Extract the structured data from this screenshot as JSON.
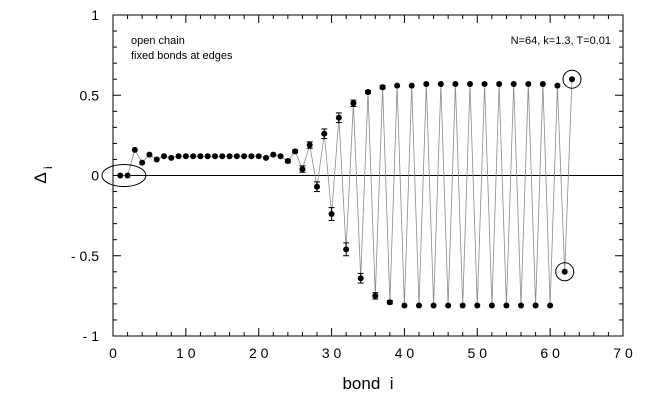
{
  "chart_data": {
    "type": "scatter",
    "xlabel": "bond  i",
    "ylabel": "Δ",
    "ylabel_sub": "i",
    "xlim": [
      0,
      70
    ],
    "ylim": [
      -1,
      1
    ],
    "xticks": [
      0,
      10,
      20,
      30,
      40,
      50,
      60,
      70
    ],
    "xtick_labels": [
      "0",
      "1 0",
      "2 0",
      "3 0",
      "4 0",
      "5 0",
      "6 0",
      "7 0"
    ],
    "yticks": [
      1,
      0.5,
      0,
      -0.5,
      -1
    ],
    "ytick_labels": [
      "1",
      "0.5",
      "0",
      "- 0.5",
      "- 1"
    ],
    "grid": false,
    "zero_line": true,
    "annotations": {
      "top_left": [
        "open chain",
        "fixed bonds at edges"
      ],
      "top_right": "N=64,  k=1.3,  T=0.01"
    },
    "series": [
      {
        "marker": "circle-filled",
        "line": "thin-gray-connecting",
        "x": [
          1,
          2,
          3,
          4,
          5,
          6,
          7,
          8,
          9,
          10,
          11,
          12,
          13,
          14,
          15,
          16,
          17,
          18,
          19,
          20,
          21,
          22,
          23,
          24,
          25,
          26,
          27,
          28,
          29,
          30,
          31,
          32,
          33,
          34,
          35,
          36,
          37,
          38,
          39,
          40,
          41,
          42,
          43,
          44,
          45,
          46,
          47,
          48,
          49,
          50,
          51,
          52,
          53,
          54,
          55,
          56,
          57,
          58,
          59,
          60,
          61,
          62,
          63
        ],
        "y": [
          0.0,
          0.0,
          0.16,
          0.08,
          0.13,
          0.1,
          0.12,
          0.11,
          0.12,
          0.12,
          0.12,
          0.12,
          0.12,
          0.12,
          0.12,
          0.12,
          0.12,
          0.12,
          0.12,
          0.12,
          0.11,
          0.13,
          0.12,
          0.09,
          0.15,
          0.04,
          0.19,
          -0.07,
          0.26,
          -0.24,
          0.36,
          -0.46,
          0.45,
          -0.64,
          0.52,
          -0.75,
          0.55,
          -0.79,
          0.56,
          -0.81,
          0.56,
          -0.81,
          0.57,
          -0.81,
          0.57,
          -0.81,
          0.57,
          -0.81,
          0.57,
          -0.81,
          0.57,
          -0.81,
          0.57,
          -0.81,
          0.57,
          -0.81,
          0.57,
          -0.81,
          0.57,
          -0.81,
          0.56,
          -0.6,
          0.6
        ],
        "err": [
          0,
          0,
          0,
          0,
          0,
          0,
          0,
          0,
          0,
          0,
          0,
          0,
          0,
          0,
          0,
          0,
          0,
          0,
          0,
          0,
          0,
          0,
          0,
          0.01,
          0.01,
          0.02,
          0.02,
          0.03,
          0.03,
          0.04,
          0.03,
          0.04,
          0.02,
          0.03,
          0.01,
          0.02,
          0.01,
          0.01,
          0,
          0,
          0,
          0,
          0,
          0,
          0,
          0,
          0,
          0,
          0,
          0,
          0,
          0,
          0,
          0,
          0,
          0,
          0,
          0,
          0,
          0,
          0,
          0,
          0
        ]
      }
    ],
    "circled_points": [
      {
        "x_center": 1.5,
        "y": 0.0,
        "shape": "ellipse"
      },
      {
        "x_center": 62,
        "y": -0.6,
        "shape": "circle"
      },
      {
        "x_center": 63,
        "y": 0.6,
        "shape": "circle"
      }
    ]
  }
}
